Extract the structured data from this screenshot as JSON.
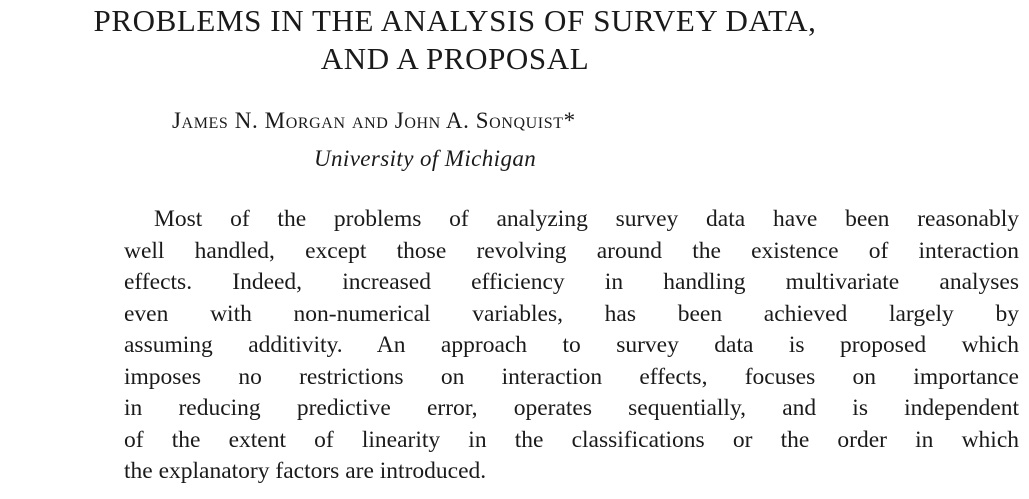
{
  "paper": {
    "title_lines": [
      "PROBLEMS IN THE ANALYSIS OF SURVEY DATA,",
      "AND A PROPOSAL"
    ],
    "authors": "James N. Morgan and John A. Sonquist*",
    "affiliation": "University of Michigan",
    "abstract_lines": [
      "Most of the problems of analyzing survey data have been reasonably",
      "well handled, except those revolving around the existence of interaction",
      "effects. Indeed, increased efficiency in handling multivariate analyses",
      "even with non-numerical variables, has been achieved largely by",
      "assuming additivity. An approach to survey data is proposed which",
      "imposes no restrictions on interaction effects, focuses on importance",
      "in reducing predictive error, operates sequentially, and is independent",
      "of the extent of linearity in the classifications or the order in which",
      "the explanatory factors are introduced."
    ]
  }
}
